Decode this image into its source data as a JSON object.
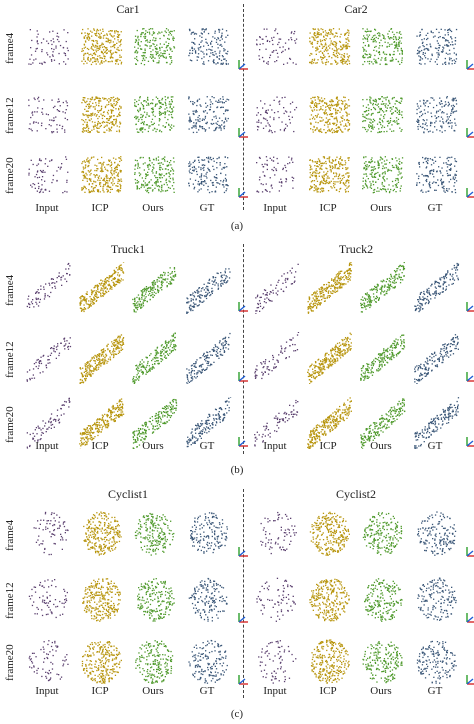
{
  "figure": {
    "panels": [
      {
        "tag": "(a)",
        "groups": [
          {
            "title": "Car1"
          },
          {
            "title": "Car2"
          }
        ],
        "rows": [
          "frame4",
          "frame12",
          "frame20"
        ],
        "columns": [
          "Input",
          "ICP",
          "Ours",
          "GT"
        ]
      },
      {
        "tag": "(b)",
        "groups": [
          {
            "title": "Truck1"
          },
          {
            "title": "Truck2"
          }
        ],
        "rows": [
          "frame4",
          "frame12",
          "frame20"
        ],
        "columns": [
          "Input",
          "ICP",
          "Ours",
          "GT"
        ]
      },
      {
        "tag": "(c)",
        "groups": [
          {
            "title": "Cyclist1"
          },
          {
            "title": "Cyclist2"
          }
        ],
        "rows": [
          "frame4",
          "frame12",
          "frame20"
        ],
        "columns": [
          "Input",
          "ICP",
          "Ours",
          "GT"
        ]
      }
    ],
    "method_colors": {
      "Input": "#5a3f6e",
      "ICP": "#b8960f",
      "Ours": "#4f9a2c",
      "GT": "#3b5778"
    },
    "axis_colors": {
      "x": "#d62728",
      "y": "#2ca02c",
      "z": "#1f5fd6"
    }
  }
}
